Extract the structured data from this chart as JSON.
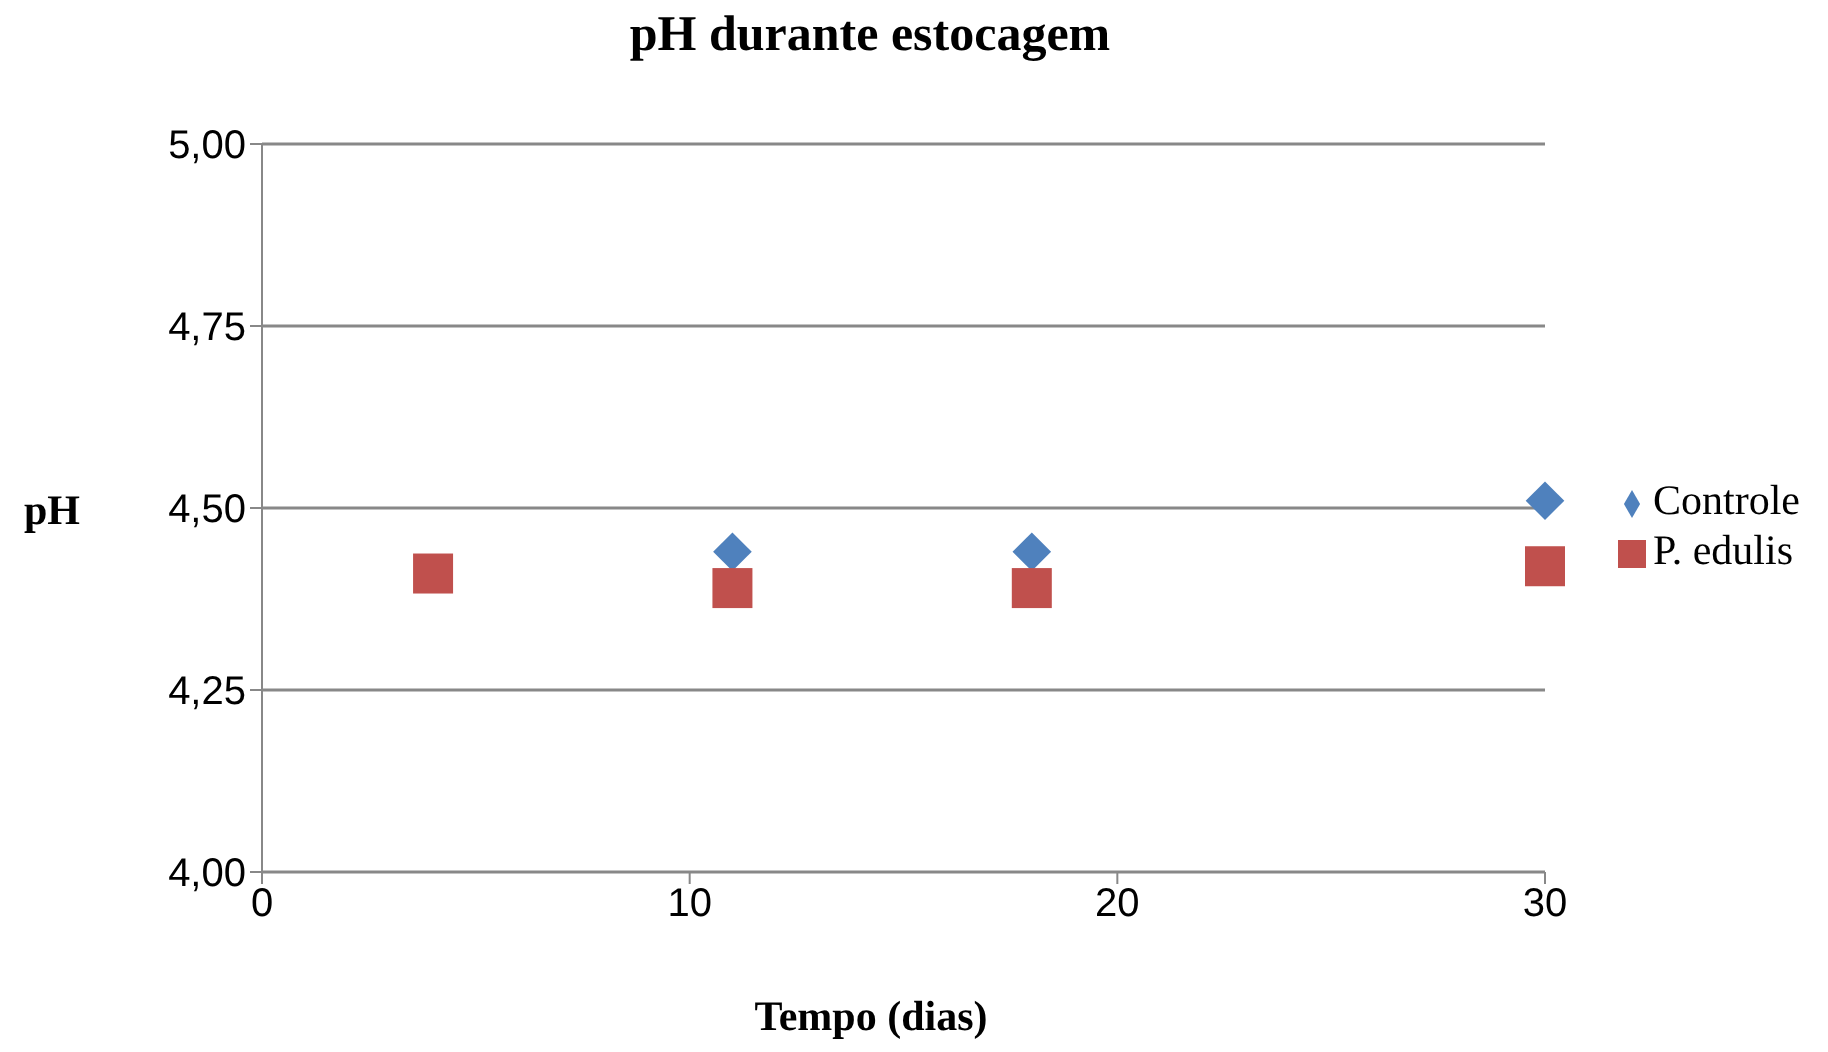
{
  "chart_data": {
    "type": "scatter",
    "title": "pH durante estocagem",
    "xlabel": "Tempo (dias)",
    "ylabel": "pH",
    "x": [
      4,
      11,
      18,
      30
    ],
    "series": [
      {
        "name": "Controle",
        "color": "#4f81bd",
        "marker": "diamond",
        "values": [
          null,
          4.44,
          4.44,
          4.51
        ]
      },
      {
        "name": "P. edulis",
        "color": "#c0504d",
        "marker": "square",
        "values": [
          4.41,
          4.39,
          4.39,
          4.42
        ]
      }
    ],
    "xlim": [
      0,
      30
    ],
    "xticks": [
      0,
      10,
      20,
      30
    ],
    "ylim": [
      4,
      5
    ],
    "yticks": [
      {
        "value": 4,
        "label": "4,00"
      },
      {
        "value": 4.25,
        "label": "4,25"
      },
      {
        "value": 4.5,
        "label": "4,50"
      },
      {
        "value": 4.75,
        "label": "4,75"
      },
      {
        "value": 5,
        "label": "5,00"
      }
    ],
    "grid": "y",
    "legend": "right"
  }
}
